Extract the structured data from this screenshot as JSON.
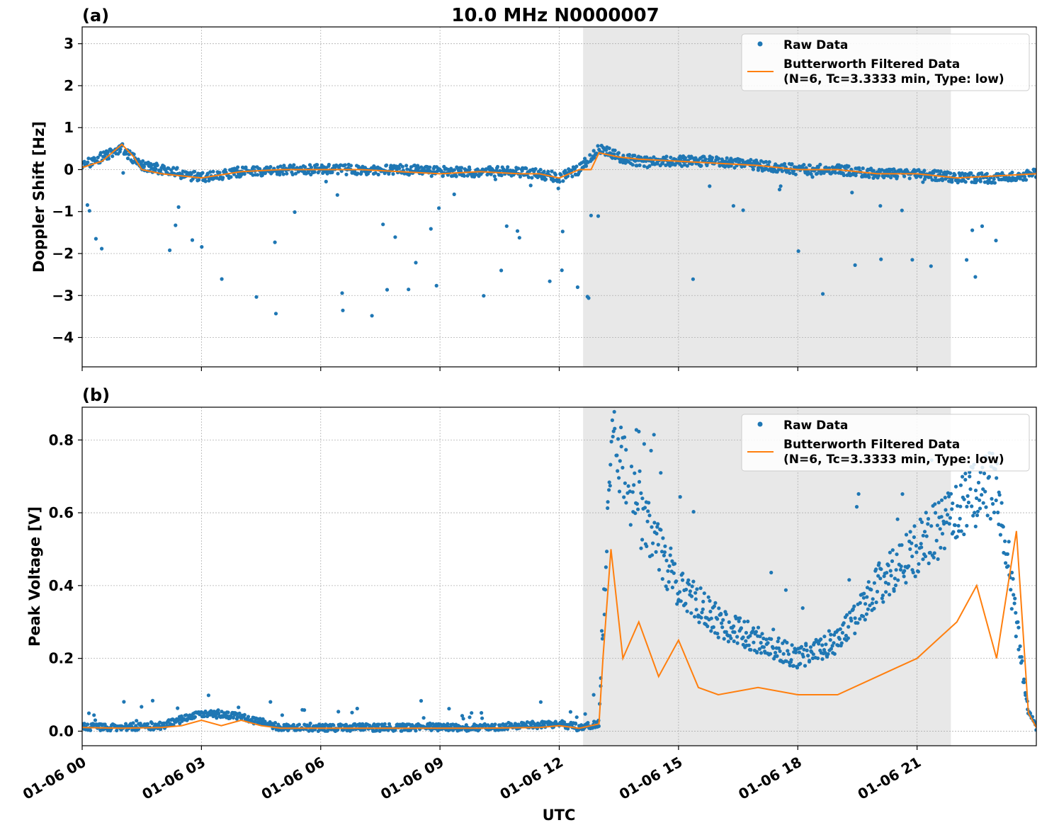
{
  "figure": {
    "title": "10.0 MHz N0000007",
    "xlabel": "UTC",
    "xticks": [
      "01-06 00",
      "01-06 03",
      "01-06 06",
      "01-06 09",
      "01-06 12",
      "01-06 15",
      "01-06 18",
      "01-06 21"
    ],
    "xtick_hours": [
      0,
      3,
      6,
      9,
      12,
      15,
      18,
      21
    ],
    "xlim_hours": [
      0,
      24
    ],
    "shaded_span_hours": [
      12.6,
      21.85
    ],
    "colors": {
      "raw": "#1f77b4",
      "filtered": "#ff7f0e",
      "shade": "#e8e8e8",
      "grid": "#b0b0b0"
    },
    "legend": {
      "raw_label": "Raw Data",
      "filtered_label_line1": "Butterworth Filtered Data",
      "filtered_label_line2": "(N=6, Tc=3.3333 min, Type: low)",
      "placement": "upper right"
    }
  },
  "chart_data": [
    {
      "type": "scatter",
      "panel_label": "(a)",
      "ylabel": "Doppler Shift [Hz]",
      "ylim": [
        -4.7,
        3.4
      ],
      "yticks": [
        3,
        2,
        1,
        0,
        -1,
        -2,
        -3,
        -4
      ],
      "ytick_labels": [
        "3",
        "2",
        "1",
        "0",
        "−1",
        "−2",
        "−3",
        "−4"
      ],
      "grid": true,
      "series": [
        {
          "name": "Raw Data",
          "x_hours": [
            0.0,
            0.5,
            1.0,
            1.5,
            2.0,
            2.5,
            3.0,
            4.0,
            5.0,
            6.0,
            7.0,
            8.0,
            9.0,
            10.0,
            11.0,
            11.5,
            12.0,
            12.5,
            13.0,
            13.5,
            14.0,
            15.0,
            16.0,
            17.0,
            18.0,
            19.0,
            20.0,
            21.0,
            22.0,
            23.0,
            24.0
          ],
          "y": [
            0.1,
            0.3,
            0.5,
            0.1,
            0.0,
            -0.1,
            -0.2,
            -0.05,
            0.0,
            0.0,
            0.0,
            0.0,
            -0.05,
            -0.05,
            -0.05,
            -0.1,
            -0.2,
            0.0,
            0.5,
            0.3,
            0.2,
            0.2,
            0.2,
            0.1,
            0.0,
            0.0,
            -0.1,
            -0.1,
            -0.2,
            -0.2,
            -0.1
          ]
        },
        {
          "name": "Butterworth Filtered Data",
          "x_hours": [
            0.0,
            0.5,
            1.0,
            1.3,
            1.5,
            2.0,
            2.5,
            3.0,
            4.0,
            5.0,
            6.0,
            7.0,
            8.0,
            9.0,
            10.0,
            11.0,
            11.5,
            12.0,
            12.5,
            12.8,
            13.0,
            13.5,
            14.0,
            15.0,
            16.0,
            17.0,
            18.0,
            19.0,
            20.0,
            21.0,
            22.0,
            23.0,
            24.0
          ],
          "y": [
            0.05,
            0.2,
            0.6,
            0.3,
            0.0,
            -0.1,
            -0.15,
            -0.2,
            -0.05,
            0.0,
            0.0,
            0.0,
            -0.05,
            -0.1,
            -0.05,
            -0.1,
            -0.1,
            -0.2,
            0.0,
            0.0,
            0.4,
            0.3,
            0.25,
            0.2,
            0.15,
            0.1,
            0.0,
            0.0,
            -0.1,
            -0.1,
            -0.2,
            -0.15,
            -0.1
          ]
        }
      ]
    },
    {
      "type": "scatter",
      "panel_label": "(b)",
      "ylabel": "Peak Voltage [V]",
      "ylim": [
        -0.04,
        0.89
      ],
      "yticks": [
        0.0,
        0.2,
        0.4,
        0.6,
        0.8
      ],
      "ytick_labels": [
        "0.0",
        "0.2",
        "0.4",
        "0.6",
        "0.8"
      ],
      "grid": true,
      "series": [
        {
          "name": "Raw Data",
          "x_hours": [
            0.0,
            1.0,
            2.0,
            3.0,
            4.0,
            5.0,
            6.0,
            8.0,
            10.0,
            12.0,
            12.5,
            13.0,
            13.3,
            14.0,
            15.0,
            16.0,
            17.0,
            18.0,
            19.0,
            20.0,
            21.0,
            22.0,
            23.0,
            23.8,
            24.0
          ],
          "y": [
            0.012,
            0.01,
            0.015,
            0.05,
            0.04,
            0.01,
            0.01,
            0.01,
            0.01,
            0.02,
            0.01,
            0.02,
            0.8,
            0.6,
            0.4,
            0.3,
            0.25,
            0.2,
            0.25,
            0.4,
            0.5,
            0.6,
            0.7,
            0.05,
            0.01
          ]
        },
        {
          "name": "Butterworth Filtered Data",
          "x_hours": [
            0.0,
            1.0,
            2.0,
            2.5,
            3.0,
            3.5,
            4.0,
            4.5,
            5.0,
            6.0,
            8.0,
            10.0,
            11.5,
            12.0,
            12.5,
            13.0,
            13.1,
            13.3,
            13.6,
            14.0,
            14.5,
            15.0,
            15.5,
            16.0,
            17.0,
            18.0,
            19.0,
            20.0,
            21.0,
            21.5,
            22.0,
            22.5,
            23.0,
            23.5,
            23.8,
            24.0
          ],
          "y": [
            0.01,
            0.008,
            0.01,
            0.015,
            0.03,
            0.015,
            0.03,
            0.015,
            0.008,
            0.008,
            0.008,
            0.008,
            0.01,
            0.015,
            0.008,
            0.02,
            0.2,
            0.5,
            0.2,
            0.3,
            0.15,
            0.25,
            0.12,
            0.1,
            0.12,
            0.1,
            0.1,
            0.15,
            0.2,
            0.25,
            0.3,
            0.4,
            0.2,
            0.55,
            0.05,
            0.01
          ]
        }
      ]
    }
  ]
}
